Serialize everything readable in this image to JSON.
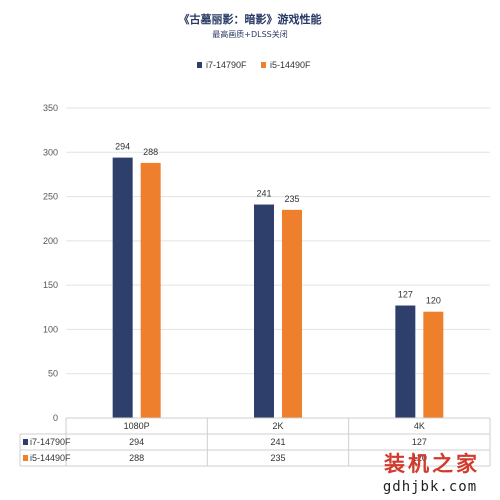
{
  "chart_data": {
    "type": "bar",
    "title": "《古墓丽影：暗影》游戏性能",
    "subtitle": "最高画质+DLSS关闭",
    "categories": [
      "1080P",
      "2K",
      "4K"
    ],
    "series": [
      {
        "name": "i7-14790F",
        "values": [
          294,
          241,
          127
        ],
        "color": "#2f3f6b"
      },
      {
        "name": "i5-14490F",
        "values": [
          288,
          235,
          120
        ],
        "color": "#ee7f2c"
      }
    ],
    "ylim": [
      0,
      350
    ],
    "yticks": [
      0,
      50,
      100,
      150,
      200,
      250,
      300,
      350
    ],
    "grid": true,
    "legend": "top-center",
    "data_table": true
  },
  "watermark": {
    "brand": "装机之家",
    "url": "gdhjbk.com"
  }
}
